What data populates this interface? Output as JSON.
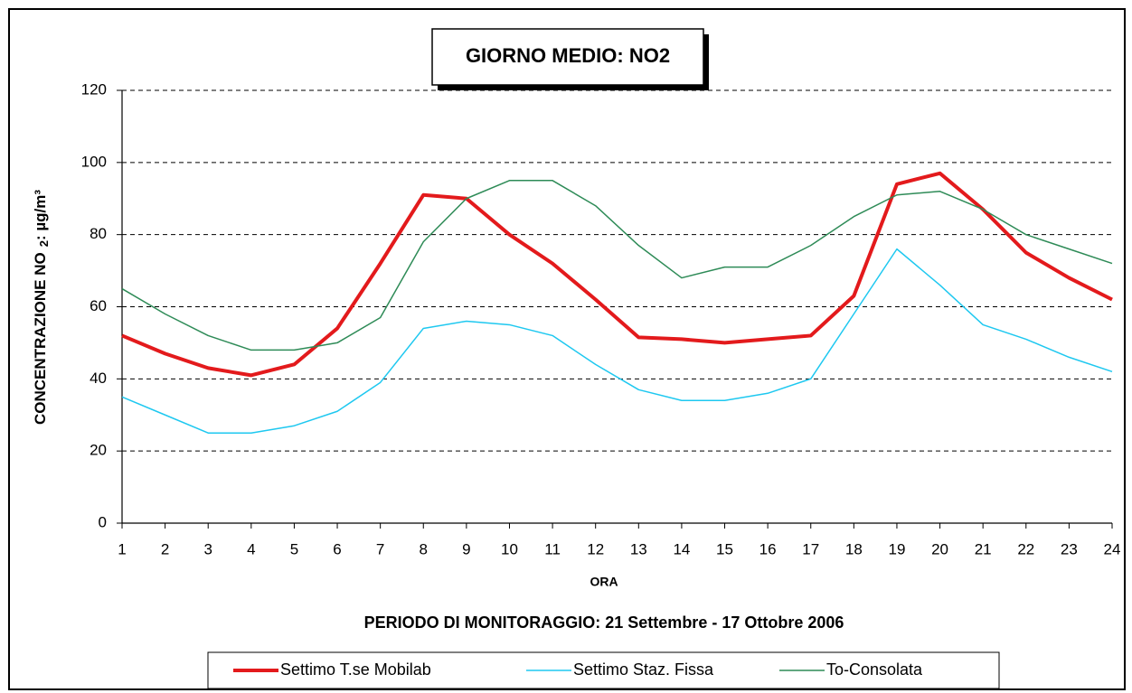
{
  "chart_data": {
    "type": "line",
    "title": "GIORNO MEDIO: NO2",
    "ylabel": [
      "CONCENTRAZIONE NO",
      "2",
      ":  µg/m³"
    ],
    "xlabel": "ORA",
    "subtitle": "PERIODO DI MONITORAGGIO: 21 Settembre - 17 Ottobre 2006",
    "x": [
      1,
      2,
      3,
      4,
      5,
      6,
      7,
      8,
      9,
      10,
      11,
      12,
      13,
      14,
      15,
      16,
      17,
      18,
      19,
      20,
      21,
      22,
      23,
      24
    ],
    "xlim": [
      1,
      24
    ],
    "xticks": [
      1,
      2,
      3,
      4,
      5,
      6,
      7,
      8,
      9,
      10,
      11,
      12,
      13,
      14,
      15,
      16,
      17,
      18,
      19,
      20,
      21,
      22,
      23,
      24
    ],
    "ylim": [
      0,
      120
    ],
    "yticks": [
      0,
      20,
      40,
      60,
      80,
      100,
      120
    ],
    "grid": true,
    "legend": "bottom",
    "series": [
      {
        "name": "Settimo T.se Mobilab",
        "color": "#e31a1c",
        "width": 4,
        "values": [
          52,
          47,
          43,
          41,
          44,
          54,
          72,
          91,
          90,
          80,
          72,
          62,
          51.5,
          51,
          50,
          51,
          52,
          63,
          94,
          97,
          87,
          75,
          68,
          62
        ]
      },
      {
        "name": "Settimo Staz. Fissa",
        "color": "#1ec8f0",
        "width": 1.5,
        "values": [
          35,
          30,
          25,
          25,
          27,
          31,
          39,
          54,
          56,
          55,
          52,
          44,
          37,
          34,
          34,
          36,
          40,
          58,
          76,
          66,
          55,
          51,
          46,
          42
        ]
      },
      {
        "name": "To-Consolata",
        "color": "#2e8b57",
        "width": 1.5,
        "values": [
          65,
          58,
          52,
          48,
          48,
          50,
          57,
          78,
          90,
          95,
          95,
          88,
          77,
          68,
          71,
          71,
          77,
          85,
          91,
          92,
          87,
          80,
          76,
          72
        ]
      }
    ]
  }
}
